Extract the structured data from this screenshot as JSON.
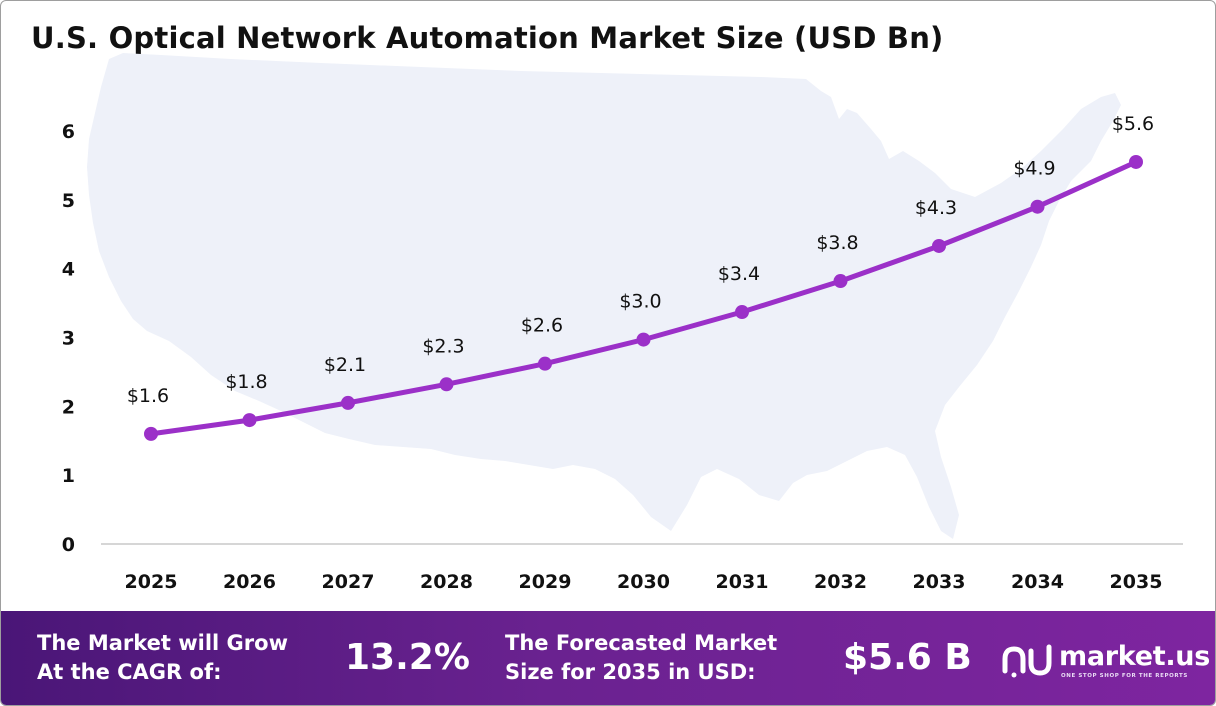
{
  "title": "U.S. Optical Network Automation Market Size (USD Bn)",
  "colors": {
    "line": "#9b30c8",
    "point": "#9b30c8",
    "map": "#eef1f9",
    "axis": "#c8c8c8",
    "footer_start": "#4a1677",
    "footer_end": "#7e25a0"
  },
  "chart_data": {
    "type": "line",
    "title": "U.S. Optical Network Automation Market Size (USD Bn)",
    "categories": [
      "2025",
      "2026",
      "2027",
      "2028",
      "2029",
      "2030",
      "2031",
      "2032",
      "2033",
      "2034",
      "2035"
    ],
    "values": [
      1.6,
      1.8,
      2.05,
      2.32,
      2.62,
      2.97,
      3.37,
      3.82,
      4.33,
      4.9,
      5.55
    ],
    "data_labels": [
      "$1.6",
      "$1.8",
      "$2.1",
      "$2.3",
      "$2.6",
      "$3.0",
      "$3.4",
      "$3.8",
      "$4.3",
      "$4.9",
      "$5.6"
    ],
    "yticks": [
      "0",
      "1",
      "2",
      "3",
      "4",
      "5",
      "6"
    ],
    "ylim": [
      0,
      6
    ],
    "xlabel": "",
    "ylabel": "",
    "grid": false,
    "legend": "none"
  },
  "footer": {
    "cagr_label_1": "The Market will Grow",
    "cagr_label_2": "At the CAGR of:",
    "cagr_value": "13.2%",
    "forecast_label_1": "The Forecasted Market",
    "forecast_label_2": "Size for 2035 in USD:",
    "forecast_value": "$5.6 B",
    "brand_name": "market.us",
    "brand_tagline": "ONE STOP SHOP FOR THE REPORTS",
    "brand_icon": "market-us-logo-icon"
  }
}
